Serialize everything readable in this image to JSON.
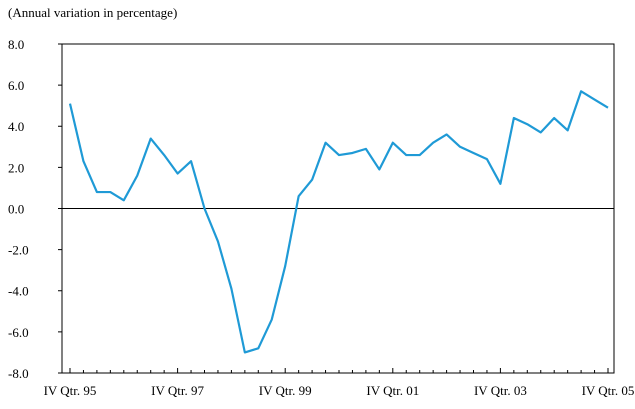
{
  "chart_data": {
    "type": "line",
    "subtitle": "(Annual variation in percentage)",
    "categories": [
      "IV Qtr. 95",
      null,
      null,
      null,
      null,
      null,
      null,
      null,
      "IV Qtr. 97",
      null,
      null,
      null,
      null,
      null,
      null,
      null,
      "IV Qtr. 99",
      null,
      null,
      null,
      null,
      null,
      null,
      null,
      "IV Qtr. 01",
      null,
      null,
      null,
      null,
      null,
      null,
      null,
      "IV Qtr. 03",
      null,
      null,
      null,
      null,
      null,
      null,
      null,
      "IV Qtr. 05"
    ],
    "values": [
      5.1,
      2.3,
      0.8,
      0.8,
      0.4,
      1.6,
      3.4,
      2.6,
      1.7,
      2.3,
      0.0,
      -1.6,
      -3.9,
      -7.0,
      -6.8,
      -5.4,
      -2.8,
      0.6,
      1.4,
      3.2,
      2.6,
      2.7,
      2.9,
      1.9,
      3.2,
      2.6,
      2.6,
      3.2,
      3.6,
      3.0,
      2.7,
      2.4,
      1.2,
      4.4,
      4.1,
      3.7,
      4.4,
      3.8,
      5.7,
      5.3,
      4.9
    ],
    "color": "#1f9ad6",
    "ylim": [
      -8,
      8
    ],
    "yticks": [
      {
        "value": -8,
        "label": "-8.0"
      },
      {
        "value": -6,
        "label": "-6.0"
      },
      {
        "value": -4,
        "label": "-4.0"
      },
      {
        "value": -2,
        "label": "-2.0"
      },
      {
        "value": 0,
        "label": "0.0"
      },
      {
        "value": 2,
        "label": "2.0"
      },
      {
        "value": 4,
        "label": "4.0"
      },
      {
        "value": 6,
        "label": "6.0"
      },
      {
        "value": 8,
        "label": "8.0"
      }
    ],
    "grid": false
  }
}
